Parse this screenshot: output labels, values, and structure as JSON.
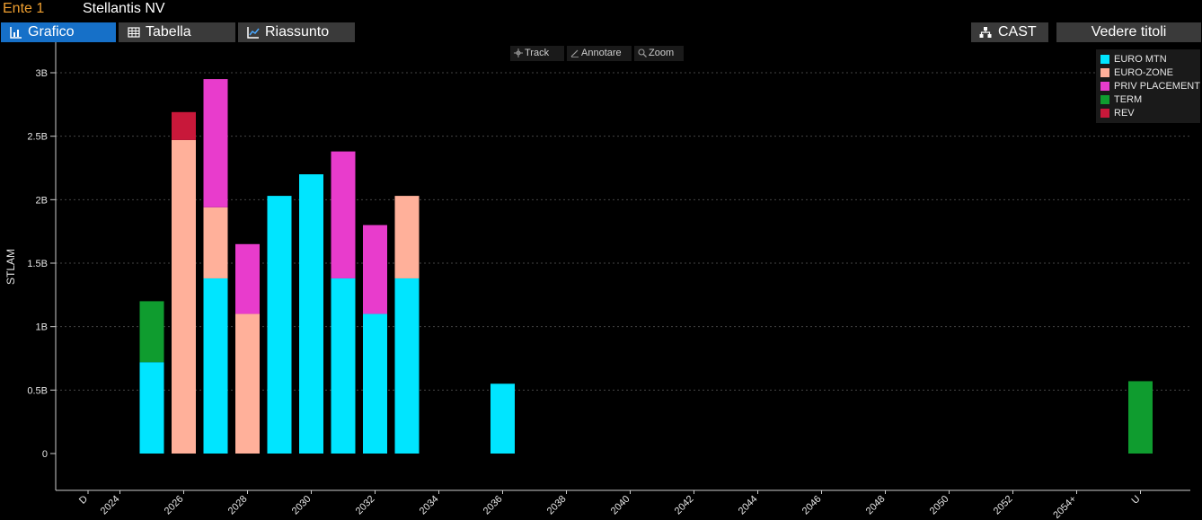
{
  "header": {
    "entity_label": "Ente 1",
    "company_name": "Stellantis NV"
  },
  "tabs": [
    {
      "label": "Grafico",
      "icon": "bar-chart-icon",
      "active": true
    },
    {
      "label": "Tabella",
      "icon": "table-icon",
      "active": false
    },
    {
      "label": "Riassunto",
      "icon": "summary-chart-icon",
      "active": false
    }
  ],
  "buttons": {
    "cast_label": "CAST",
    "cast_icon": "hierarchy-icon",
    "titles_label": "Vedere titoli"
  },
  "tools": {
    "track_label": "Track",
    "annotate_label": "Annotare",
    "zoom_label": "Zoom"
  },
  "colors": {
    "background": "#000000",
    "active_tab": "#1670c8",
    "button": "#3a3a3a",
    "entity_label": "#f0a030"
  },
  "chart_data": {
    "type": "bar",
    "stacked": true,
    "ylabel": "STLAM",
    "xlabel": "",
    "ylim": [
      0,
      3.2
    ],
    "yticks": [
      0,
      0.5,
      1,
      1.5,
      2,
      2.5,
      3
    ],
    "ytick_labels": [
      "0",
      "0.5B",
      "1B",
      "1.5B",
      "2B",
      "2.5B",
      "3B"
    ],
    "grid": true,
    "legend_position": "top-right",
    "categories": [
      "D",
      "2024",
      "2025",
      "2026",
      "2027",
      "2028",
      "2029",
      "2030",
      "2031",
      "2032",
      "2033",
      "2034",
      "2035",
      "2036",
      "2037",
      "2038",
      "2039",
      "2040",
      "2041",
      "2042",
      "2043",
      "2044",
      "2045",
      "2046",
      "2047",
      "2048",
      "2049",
      "2050",
      "2051",
      "2052",
      "2053",
      "2054+",
      "2055",
      "U"
    ],
    "x_tick_labels": [
      "D",
      "2024",
      "2026",
      "2028",
      "2030",
      "2032",
      "2034",
      "2036",
      "2038",
      "2040",
      "2042",
      "2044",
      "2046",
      "2048",
      "2050",
      "2052",
      "2054+",
      "U"
    ],
    "series": [
      {
        "name": "EURO MTN",
        "color": "#00e5ff",
        "values": [
          0,
          0,
          0.72,
          0,
          1.38,
          0,
          2.03,
          2.2,
          1.38,
          1.1,
          1.38,
          0,
          0,
          0.55,
          0,
          0,
          0,
          0,
          0,
          0,
          0,
          0,
          0,
          0,
          0,
          0,
          0,
          0,
          0,
          0,
          0,
          0,
          0,
          0
        ]
      },
      {
        "name": "EURO-ZONE",
        "color": "#ffb09a",
        "values": [
          0,
          0,
          0,
          2.47,
          0.56,
          1.1,
          0,
          0,
          0,
          0,
          0.65,
          0,
          0,
          0,
          0,
          0,
          0,
          0,
          0,
          0,
          0,
          0,
          0,
          0,
          0,
          0,
          0,
          0,
          0,
          0,
          0,
          0,
          0,
          0
        ]
      },
      {
        "name": "PRIV PLACEMENT",
        "color": "#e83ccc",
        "values": [
          0,
          0,
          0,
          0,
          1.01,
          0.55,
          0,
          0,
          1.0,
          0.7,
          0,
          0,
          0,
          0,
          0,
          0,
          0,
          0,
          0,
          0,
          0,
          0,
          0,
          0,
          0,
          0,
          0,
          0,
          0,
          0,
          0,
          0,
          0,
          0
        ]
      },
      {
        "name": "TERM",
        "color": "#0f9c2f",
        "values": [
          0,
          0,
          0.48,
          0,
          0,
          0,
          0,
          0,
          0,
          0,
          0,
          0,
          0,
          0,
          0,
          0,
          0,
          0,
          0,
          0,
          0,
          0,
          0,
          0,
          0,
          0,
          0,
          0,
          0,
          0,
          0,
          0,
          0,
          0.57
        ]
      },
      {
        "name": "REV",
        "color": "#c8183a",
        "values": [
          0,
          0,
          0,
          0.22,
          0,
          0,
          0,
          0,
          0,
          0,
          0,
          0,
          0,
          0,
          0,
          0,
          0,
          0,
          0,
          0,
          0,
          0,
          0,
          0,
          0,
          0,
          0,
          0,
          0,
          0,
          0,
          0,
          0,
          0
        ]
      }
    ]
  }
}
